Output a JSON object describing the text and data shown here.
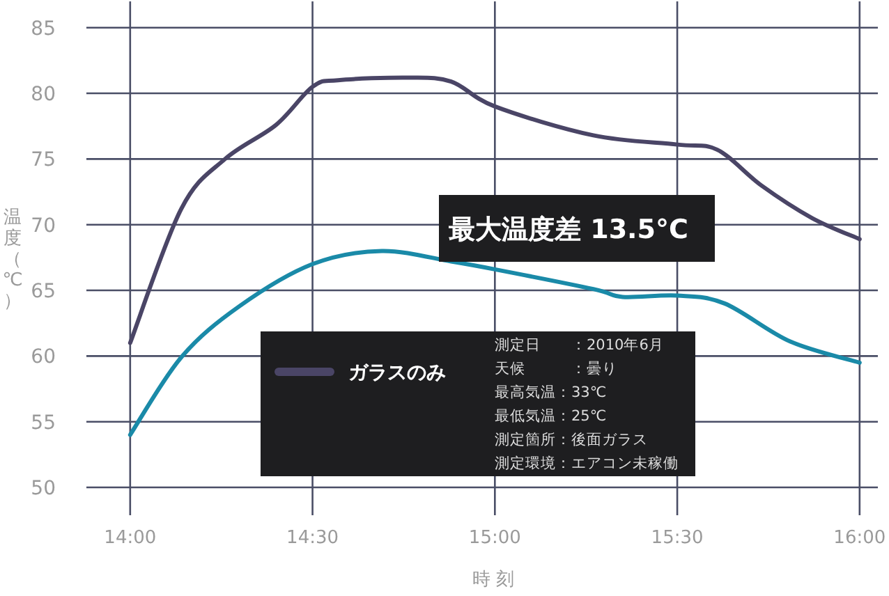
{
  "chart_data": {
    "type": "line",
    "xlabel": "時刻",
    "ylabel": "温度（℃）",
    "x": [
      14.0,
      14.14,
      14.26,
      14.4,
      14.5,
      14.57,
      14.76,
      14.88,
      15.0,
      15.27,
      15.5,
      15.61,
      15.73,
      15.87,
      16.0
    ],
    "series": [
      {
        "name": "ガラスのみ",
        "color": "#4a4566",
        "values": [
          61,
          71.2,
          75,
          77.6,
          80.5,
          81.0,
          81.2,
          80.9,
          79.0,
          76.8,
          76.1,
          75.7,
          73.0,
          70.5,
          68.9
        ]
      },
      {
        "color": "#1a8aa8",
        "x": [
          14.0,
          14.14,
          14.3,
          14.5,
          14.69,
          14.88,
          15.0,
          15.27,
          15.35,
          15.5,
          15.63,
          15.81,
          16.0
        ],
        "values": [
          54,
          59.9,
          63.8,
          67.0,
          68.0,
          67.2,
          66.6,
          65.1,
          64.5,
          64.6,
          64.0,
          61.1,
          59.5
        ]
      }
    ],
    "xlim": [
      13.88,
      16.05
    ],
    "ylim": [
      50,
      87
    ],
    "xticks": [
      {
        "value": 14,
        "label": "14:00"
      },
      {
        "value": 14.5,
        "label": "14:30"
      },
      {
        "value": 15,
        "label": "15:00"
      },
      {
        "value": 15.5,
        "label": "15:30"
      },
      {
        "value": 16,
        "label": "16:00"
      }
    ],
    "yticks": [
      50,
      55,
      60,
      65,
      70,
      75,
      80,
      85
    ],
    "grid": true,
    "legend": "bottom",
    "line_style": "solid",
    "marker": "none",
    "annotations": [
      "最大温度差 13.5°C",
      "測定日　　：2010年6月",
      "天候　　　：曇り",
      "最高気温：33℃",
      "最低気温：25℃",
      "測定箇所：後面ガラス",
      "測定環境：エアコン未稼働"
    ]
  }
}
